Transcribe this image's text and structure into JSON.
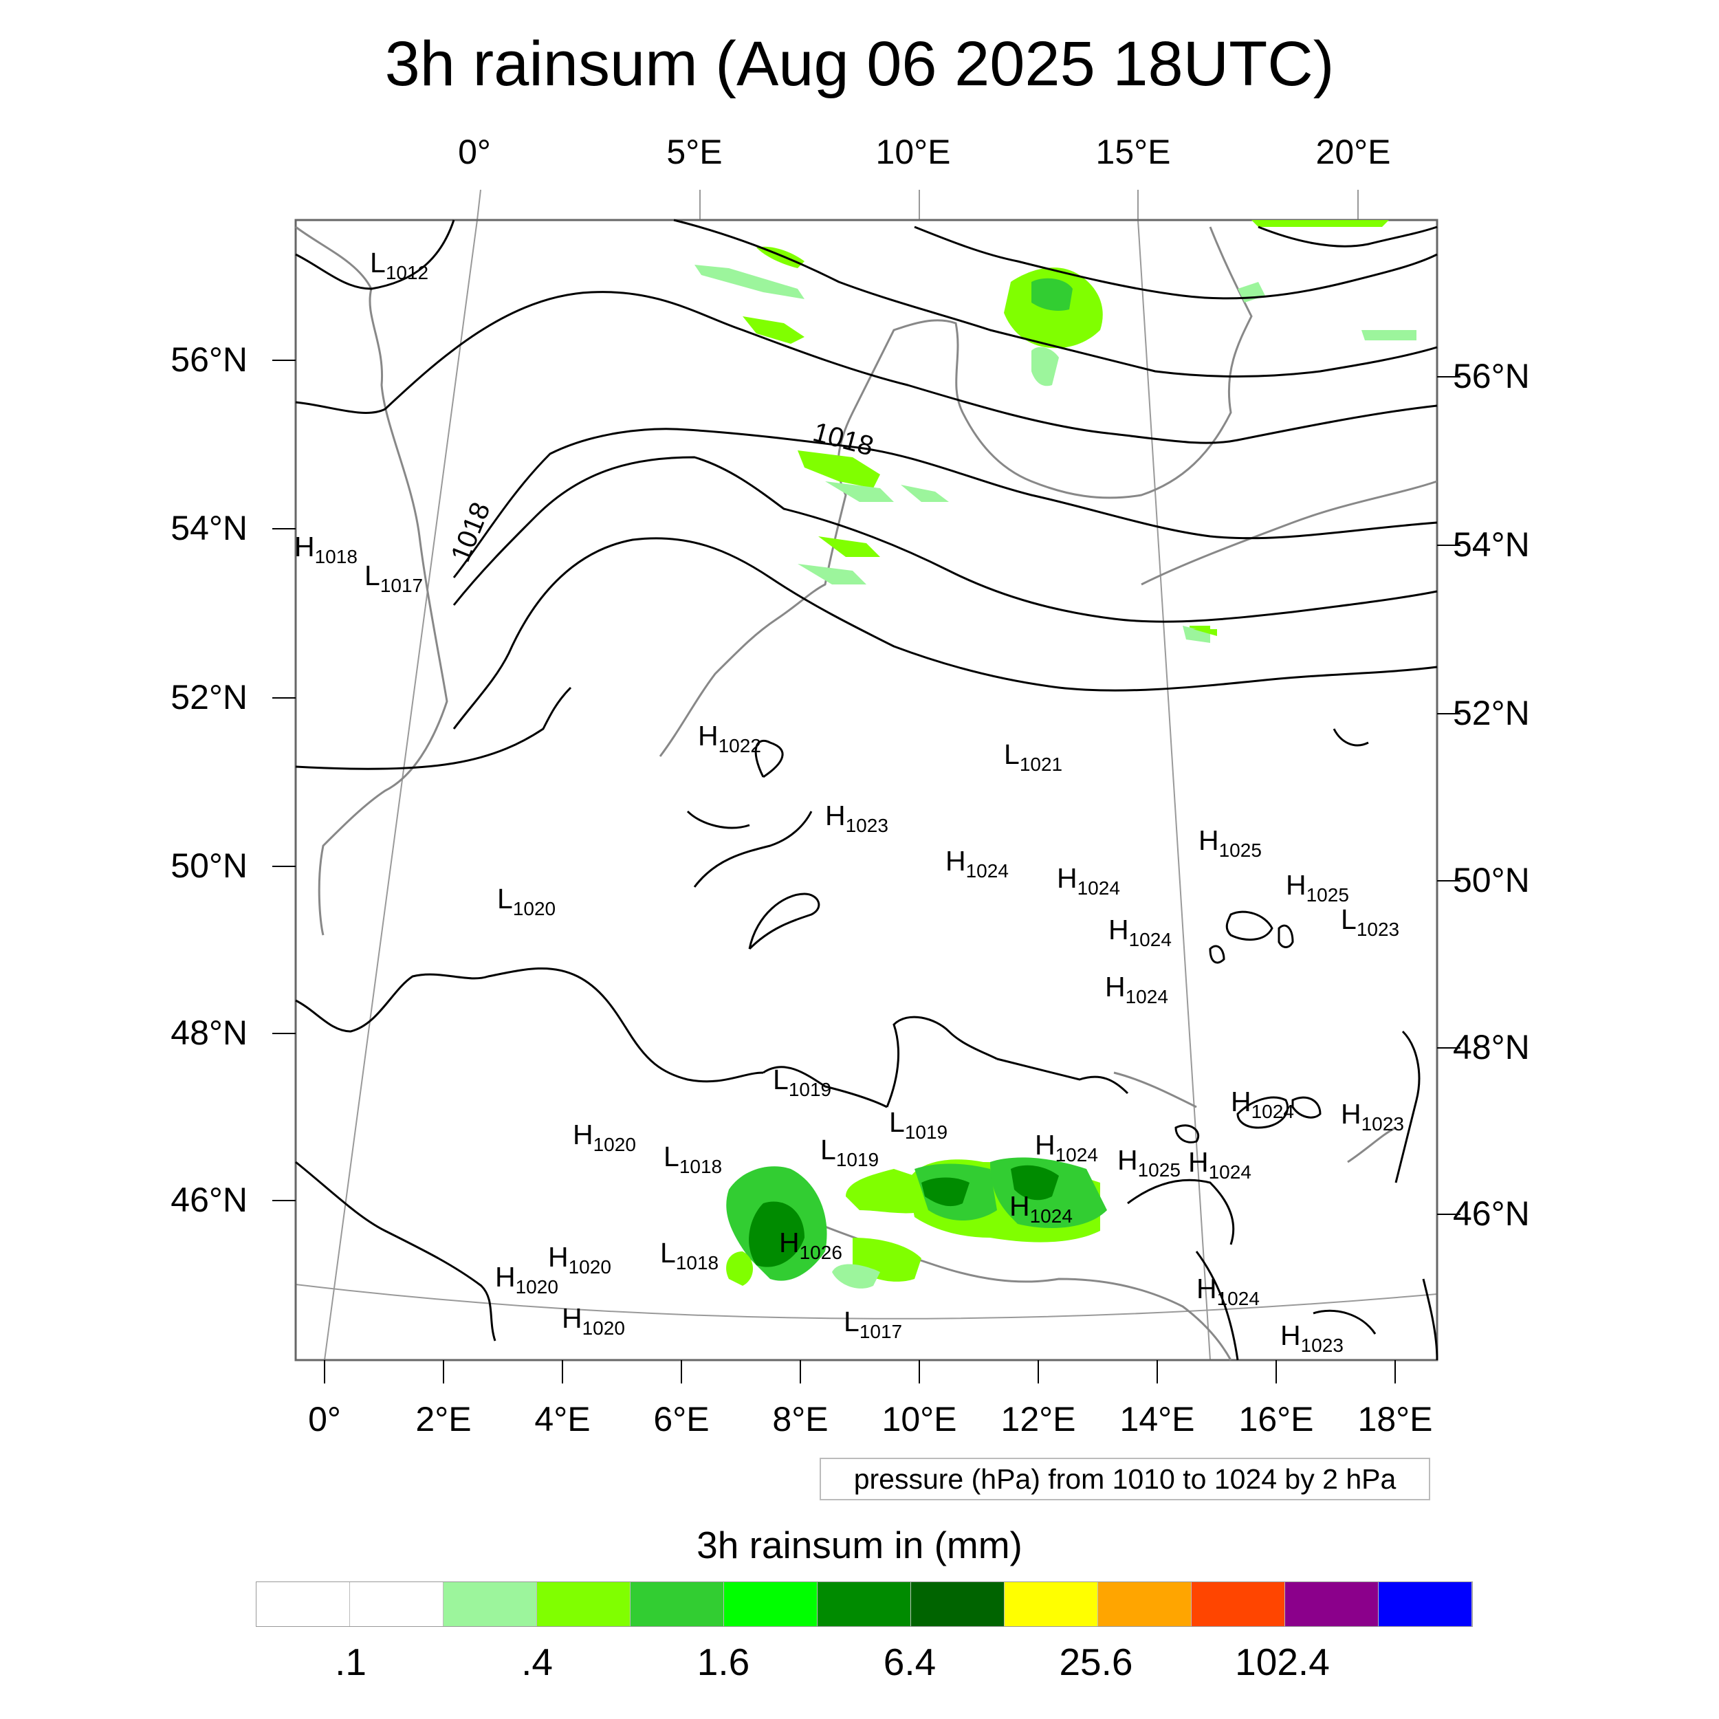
{
  "title": "3h rainsum (Aug 06 2025 18UTC)",
  "axes": {
    "top_lon": [
      "0°",
      "5°E",
      "10°E",
      "15°E",
      "20°E"
    ],
    "bottom_lon": [
      "0°",
      "2°E",
      "4°E",
      "6°E",
      "8°E",
      "10°E",
      "12°E",
      "14°E",
      "16°E",
      "18°E"
    ],
    "left_lat": [
      "56°N",
      "54°N",
      "52°N",
      "50°N",
      "48°N",
      "46°N"
    ],
    "right_lat": [
      "56°N",
      "54°N",
      "52°N",
      "50°N",
      "48°N",
      "46°N"
    ]
  },
  "contour_note": "pressure (hPa) from 1010 to 1024 by 2 hPa",
  "contour_labels": [
    "1018",
    "1018"
  ],
  "pressure_centers": [
    {
      "type": "L",
      "value": "1012"
    },
    {
      "type": "H",
      "value": "1018"
    },
    {
      "type": "L",
      "value": "1017"
    },
    {
      "type": "H",
      "value": "1022"
    },
    {
      "type": "L",
      "value": "1021"
    },
    {
      "type": "H",
      "value": "1023"
    },
    {
      "type": "H",
      "value": "1024"
    },
    {
      "type": "H",
      "value": "1024"
    },
    {
      "type": "H",
      "value": "1025"
    },
    {
      "type": "H",
      "value": "1025"
    },
    {
      "type": "L",
      "value": "1023"
    },
    {
      "type": "L",
      "value": "1020"
    },
    {
      "type": "H",
      "value": "1024"
    },
    {
      "type": "H",
      "value": "1024"
    },
    {
      "type": "L",
      "value": "1019"
    },
    {
      "type": "L",
      "value": "1019"
    },
    {
      "type": "L",
      "value": "1019"
    },
    {
      "type": "H",
      "value": "1024"
    },
    {
      "type": "H",
      "value": "1023"
    },
    {
      "type": "H",
      "value": "1020"
    },
    {
      "type": "L",
      "value": "1018"
    },
    {
      "type": "H",
      "value": "1024"
    },
    {
      "type": "H",
      "value": "1025"
    },
    {
      "type": "H",
      "value": "1024"
    },
    {
      "type": "H",
      "value": "1024"
    },
    {
      "type": "L",
      "value": "1018"
    },
    {
      "type": "H",
      "value": "1026"
    },
    {
      "type": "H",
      "value": "1020"
    },
    {
      "type": "H",
      "value": "1020"
    },
    {
      "type": "H",
      "value": "1020"
    },
    {
      "type": "L",
      "value": "1017"
    },
    {
      "type": "H",
      "value": "1024"
    },
    {
      "type": "H",
      "value": "1023"
    }
  ],
  "legend": {
    "title": "3h rainsum in (mm)",
    "colors": [
      "#ffffff",
      "#ffffff",
      "#9cf59c",
      "#80ff00",
      "#32cd32",
      "#00ff00",
      "#008b00",
      "#006400",
      "#ffff00",
      "#ffa500",
      "#ff4500",
      "#8b008b",
      "#0000ff"
    ],
    "tick_labels": [
      ".1",
      ".4",
      "1.6",
      "6.4",
      "25.6",
      "102.4"
    ]
  }
}
